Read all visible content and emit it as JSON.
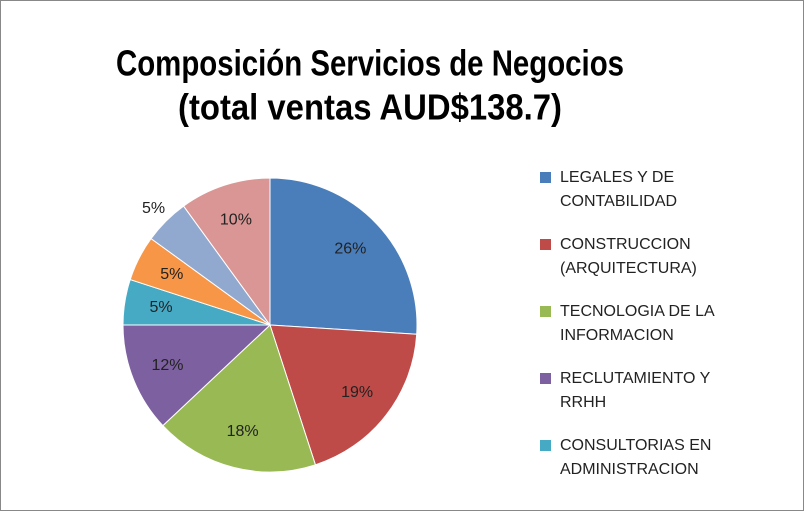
{
  "chart_data": {
    "type": "pie",
    "title": [
      "Composición Servicios de Negocios",
      "(total ventas AUD$138.7)"
    ],
    "categories": [
      "LEGALES Y DE CONTABILIDAD",
      "CONSTRUCCION (ARQUITECTURA)",
      "TECNOLOGIA DE LA INFORMACION",
      "RECLUTAMIENTO Y RRHH",
      "CONSULTORIAS EN ADMINISTRACION",
      null,
      null,
      null
    ],
    "values": [
      26,
      19,
      18,
      12,
      5,
      5,
      5,
      10
    ],
    "value_labels": [
      "26%",
      "19%",
      "18%",
      "12%",
      "5%",
      "5%",
      "5%",
      "10%"
    ],
    "colors": [
      "#4a7ebb",
      "#be4b48",
      "#98b954",
      "#7d60a0",
      "#46aac5",
      "#f79646",
      "#92a9cf",
      "#d99694"
    ],
    "legend": "right"
  }
}
